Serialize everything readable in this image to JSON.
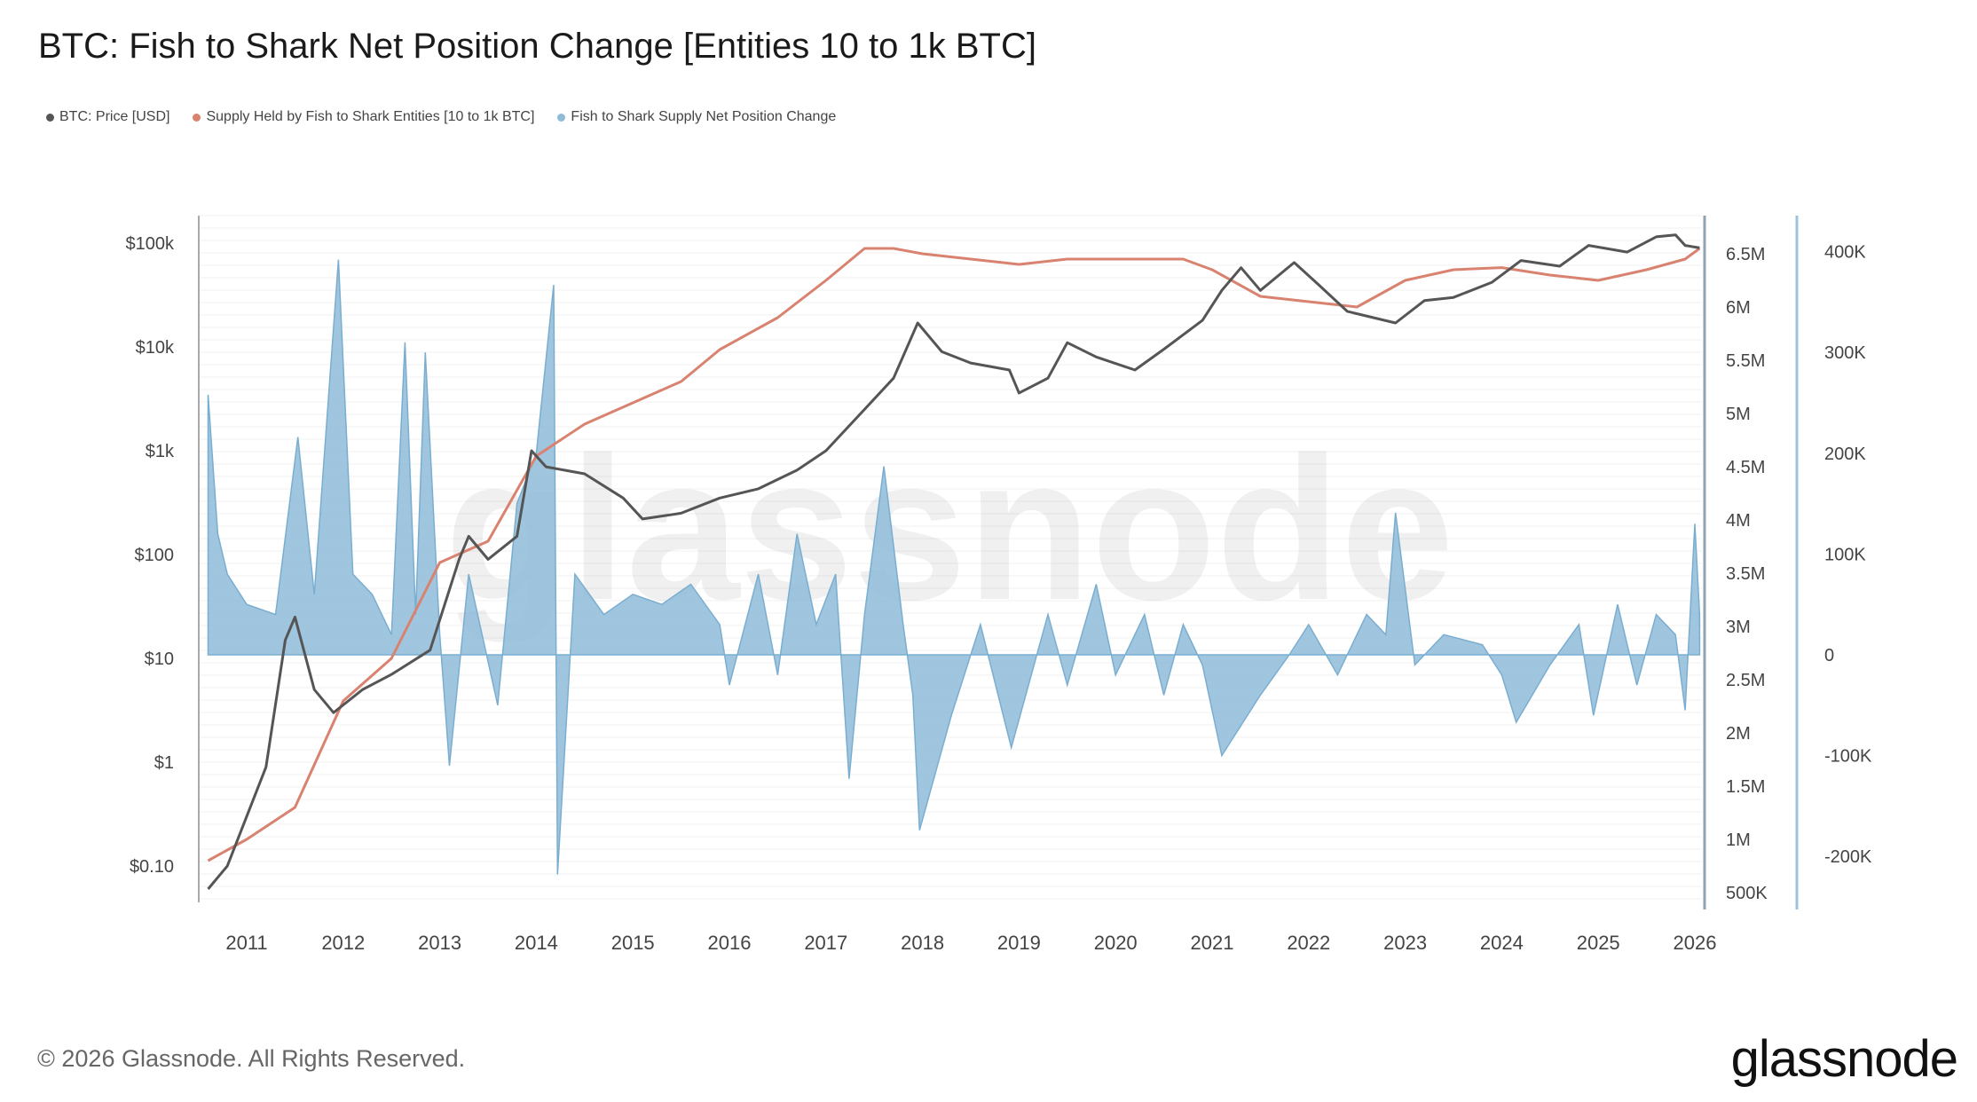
{
  "title": "BTC: Fish to Shark Net Position Change [Entities 10 to 1k BTC]",
  "footer": "© 2026 Glassnode. All Rights Reserved.",
  "logo": "glassnode",
  "watermark": "glassnode",
  "chart_data": {
    "type": "line",
    "title": "BTC: Fish to Shark Net Position Change [Entities 10 to 1k BTC]",
    "legend_placement": "top-left",
    "grid": true,
    "x_ticks": [
      "2011",
      "2012",
      "2013",
      "2014",
      "2015",
      "2016",
      "2017",
      "2018",
      "2019",
      "2020",
      "2021",
      "2022",
      "2023",
      "2024",
      "2025",
      "2026"
    ],
    "xlim": [
      2010.55,
      2026.1
    ],
    "axes": {
      "price": {
        "scale": "log",
        "ticks": [
          "$100k",
          "$10k",
          "$1k",
          "$100",
          "$10",
          "$1",
          "$0.10"
        ],
        "tick_values": [
          100000,
          10000,
          1000,
          100,
          10,
          1,
          0.1
        ]
      },
      "supply": {
        "scale": "linear",
        "ticks": [
          "6.5M",
          "6M",
          "5.5M",
          "5M",
          "4.5M",
          "4M",
          "3.5M",
          "3M",
          "2.5M",
          "2M",
          "1.5M",
          "1M",
          "500K"
        ],
        "tick_values": [
          6.5,
          6,
          5.5,
          5,
          4.5,
          4,
          3.5,
          3,
          2.5,
          2,
          1.5,
          1,
          0.5
        ]
      },
      "net": {
        "scale": "linear",
        "ticks": [
          "400K",
          "300K",
          "200K",
          "100K",
          "0",
          "-100K",
          "-200K"
        ],
        "tick_values": [
          400,
          300,
          200,
          100,
          0,
          -100,
          -200
        ]
      }
    },
    "series": [
      {
        "name": "BTC: Price [USD]",
        "axis": "price",
        "color": "#555555",
        "type": "line",
        "x": [
          2010.6,
          2010.8,
          2011.0,
          2011.2,
          2011.4,
          2011.5,
          2011.7,
          2011.9,
          2012.2,
          2012.5,
          2012.9,
          2013.2,
          2013.3,
          2013.5,
          2013.8,
          2013.95,
          2014.1,
          2014.5,
          2014.9,
          2015.1,
          2015.5,
          2015.9,
          2016.3,
          2016.7,
          2017.0,
          2017.4,
          2017.7,
          2017.95,
          2018.2,
          2018.5,
          2018.9,
          2019.0,
          2019.3,
          2019.5,
          2019.8,
          2020.2,
          2020.5,
          2020.9,
          2021.1,
          2021.3,
          2021.5,
          2021.85,
          2022.1,
          2022.4,
          2022.9,
          2023.2,
          2023.5,
          2023.9,
          2024.2,
          2024.6,
          2024.9,
          2025.3,
          2025.6,
          2025.8,
          2025.9,
          2026.05
        ],
        "y": [
          0.06,
          0.1,
          0.3,
          0.9,
          15,
          25,
          5,
          3,
          5,
          7,
          12,
          90,
          150,
          90,
          150,
          1000,
          700,
          600,
          350,
          220,
          250,
          350,
          430,
          650,
          1000,
          2500,
          5000,
          17000,
          9000,
          7000,
          6000,
          3600,
          5000,
          11000,
          8000,
          6000,
          9500,
          18000,
          35000,
          58000,
          35000,
          65000,
          40000,
          22000,
          17000,
          28000,
          30000,
          42000,
          68000,
          60000,
          95000,
          82000,
          115000,
          120000,
          95000,
          90000
        ]
      },
      {
        "name": "Supply Held by Fish to Shark Entities [10 to 1k BTC]",
        "axis": "supply",
        "unit": "M BTC",
        "color": "#d9826f",
        "type": "line",
        "x": [
          2010.6,
          2011.0,
          2011.5,
          2012.0,
          2012.5,
          2013.0,
          2013.5,
          2014.0,
          2014.5,
          2015.0,
          2015.5,
          2015.9,
          2016.5,
          2017.0,
          2017.4,
          2017.7,
          2018.0,
          2018.5,
          2019.0,
          2019.5,
          2020.0,
          2020.7,
          2021.0,
          2021.5,
          2022.0,
          2022.5,
          2023.0,
          2023.5,
          2024.0,
          2024.5,
          2025.0,
          2025.5,
          2025.9,
          2026.05
        ],
        "y": [
          0.8,
          1.0,
          1.3,
          2.3,
          2.7,
          3.6,
          3.8,
          4.6,
          4.9,
          5.1,
          5.3,
          5.6,
          5.9,
          6.25,
          6.55,
          6.55,
          6.5,
          6.45,
          6.4,
          6.45,
          6.45,
          6.45,
          6.35,
          6.1,
          6.05,
          6.0,
          6.25,
          6.35,
          6.37,
          6.3,
          6.25,
          6.35,
          6.45,
          6.55
        ]
      },
      {
        "name": "Fish to Shark Supply Net Position Change",
        "axis": "net",
        "unit": "K BTC",
        "color": "#8fbbd9",
        "type": "area",
        "x": [
          2010.6,
          2010.7,
          2010.8,
          2011.0,
          2011.3,
          2011.53,
          2011.7,
          2011.95,
          2012.1,
          2012.3,
          2012.5,
          2012.64,
          2012.75,
          2012.85,
          2013.0,
          2013.1,
          2013.3,
          2013.6,
          2013.8,
          2014.0,
          2014.18,
          2014.22,
          2014.4,
          2014.7,
          2015.0,
          2015.3,
          2015.6,
          2015.9,
          2016.0,
          2016.3,
          2016.5,
          2016.7,
          2016.9,
          2017.1,
          2017.24,
          2017.4,
          2017.6,
          2017.8,
          2017.9,
          2017.97,
          2018.3,
          2018.6,
          2018.92,
          2019.3,
          2019.5,
          2019.8,
          2020.0,
          2020.3,
          2020.5,
          2020.7,
          2020.9,
          2021.1,
          2021.5,
          2021.8,
          2022.0,
          2022.3,
          2022.6,
          2022.8,
          2022.9,
          2023.1,
          2023.4,
          2023.8,
          2024.0,
          2024.15,
          2024.5,
          2024.8,
          2024.95,
          2025.2,
          2025.4,
          2025.6,
          2025.8,
          2025.9,
          2026.0,
          2026.05
        ],
        "y": [
          258,
          120,
          80,
          50,
          40,
          216,
          60,
          392,
          80,
          60,
          20,
          310,
          40,
          300,
          20,
          -110,
          80,
          -50,
          150,
          200,
          367,
          -218,
          80,
          40,
          60,
          50,
          70,
          30,
          -30,
          80,
          -20,
          120,
          30,
          80,
          -123,
          40,
          187,
          30,
          -40,
          -174,
          -60,
          30,
          -92,
          40,
          -30,
          70,
          -20,
          40,
          -40,
          30,
          -10,
          -100,
          -40,
          0,
          30,
          -20,
          40,
          20,
          141,
          -10,
          20,
          10,
          -20,
          -67,
          -10,
          30,
          -60,
          50,
          -30,
          40,
          20,
          -55,
          130,
          40
        ]
      }
    ]
  }
}
